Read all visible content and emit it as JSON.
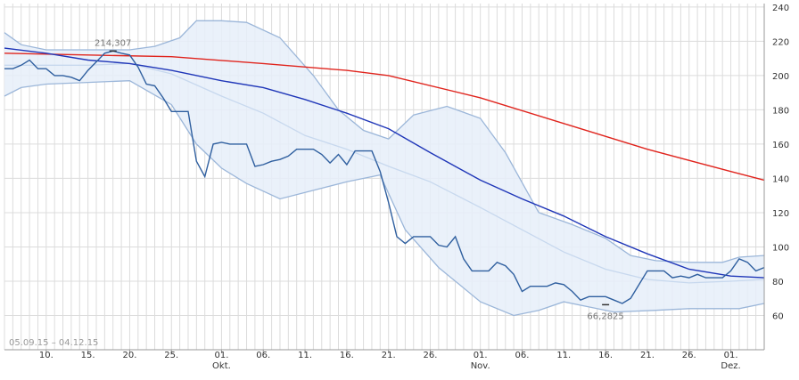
{
  "chart_data": {
    "type": "line",
    "title": "",
    "xlabel": "",
    "ylabel": "",
    "date_range": "05.09.15 – 04.12.15",
    "ylim": [
      40,
      242
    ],
    "yticks": [
      60,
      80,
      100,
      120,
      140,
      160,
      180,
      200,
      220,
      240
    ],
    "xticks": [
      {
        "date": "2015-09-10",
        "label": "10."
      },
      {
        "date": "2015-09-15",
        "label": "15."
      },
      {
        "date": "2015-09-20",
        "label": "20."
      },
      {
        "date": "2015-09-25",
        "label": "25."
      },
      {
        "date": "2015-10-01",
        "label": "01.",
        "month": "Okt."
      },
      {
        "date": "2015-10-06",
        "label": "06."
      },
      {
        "date": "2015-10-11",
        "label": "11."
      },
      {
        "date": "2015-10-16",
        "label": "16."
      },
      {
        "date": "2015-10-21",
        "label": "21."
      },
      {
        "date": "2015-10-26",
        "label": "26."
      },
      {
        "date": "2015-11-01",
        "label": "01.",
        "month": "Nov."
      },
      {
        "date": "2015-11-06",
        "label": "06."
      },
      {
        "date": "2015-11-11",
        "label": "11."
      },
      {
        "date": "2015-11-16",
        "label": "16."
      },
      {
        "date": "2015-11-21",
        "label": "21."
      },
      {
        "date": "2015-11-26",
        "label": "26."
      },
      {
        "date": "2015-12-01",
        "label": "01.",
        "month": "Dez."
      }
    ],
    "grid": true,
    "annotations": [
      {
        "label": "214,307",
        "date": "2015-09-18",
        "value": 214.307
      },
      {
        "label": "66,2825",
        "date": "2015-11-16",
        "value": 66.2825
      }
    ],
    "colors": {
      "price": "#2f5f9f",
      "sma_short": "#1f36b8",
      "sma_long": "#e0241d",
      "band_edge": "#9bb6d9",
      "band_mid": "#c7d8ee",
      "band_fill": "#e6eef9",
      "grid": "#dcdcdc"
    },
    "series": [
      {
        "key": "price",
        "points": [
          [
            "2015-09-05",
            204
          ],
          [
            "2015-09-06",
            204
          ],
          [
            "2015-09-07",
            206
          ],
          [
            "2015-09-08",
            209
          ],
          [
            "2015-09-09",
            204
          ],
          [
            "2015-09-10",
            204
          ],
          [
            "2015-09-11",
            200
          ],
          [
            "2015-09-12",
            200
          ],
          [
            "2015-09-13",
            199
          ],
          [
            "2015-09-14",
            197
          ],
          [
            "2015-09-15",
            203
          ],
          [
            "2015-09-16",
            208
          ],
          [
            "2015-09-17",
            213
          ],
          [
            "2015-09-18",
            214.307
          ],
          [
            "2015-09-19",
            213
          ],
          [
            "2015-09-20",
            212
          ],
          [
            "2015-09-21",
            205
          ],
          [
            "2015-09-22",
            195
          ],
          [
            "2015-09-23",
            194
          ],
          [
            "2015-09-24",
            187
          ],
          [
            "2015-09-25",
            179
          ],
          [
            "2015-09-26",
            179
          ],
          [
            "2015-09-27",
            179
          ],
          [
            "2015-09-28",
            150
          ],
          [
            "2015-09-29",
            141
          ],
          [
            "2015-09-30",
            160
          ],
          [
            "2015-10-01",
            161
          ],
          [
            "2015-10-02",
            160
          ],
          [
            "2015-10-03",
            160
          ],
          [
            "2015-10-04",
            160
          ],
          [
            "2015-10-05",
            147
          ],
          [
            "2015-10-06",
            148
          ],
          [
            "2015-10-07",
            150
          ],
          [
            "2015-10-08",
            151
          ],
          [
            "2015-10-09",
            153
          ],
          [
            "2015-10-10",
            157
          ],
          [
            "2015-10-11",
            157
          ],
          [
            "2015-10-12",
            157
          ],
          [
            "2015-10-13",
            154
          ],
          [
            "2015-10-14",
            149
          ],
          [
            "2015-10-15",
            154
          ],
          [
            "2015-10-16",
            148
          ],
          [
            "2015-10-17",
            156
          ],
          [
            "2015-10-18",
            156
          ],
          [
            "2015-10-19",
            156
          ],
          [
            "2015-10-20",
            144
          ],
          [
            "2015-10-21",
            126
          ],
          [
            "2015-10-22",
            106
          ],
          [
            "2015-10-23",
            102
          ],
          [
            "2015-10-24",
            106
          ],
          [
            "2015-10-25",
            106
          ],
          [
            "2015-10-26",
            106
          ],
          [
            "2015-10-27",
            101
          ],
          [
            "2015-10-28",
            100
          ],
          [
            "2015-10-29",
            106
          ],
          [
            "2015-10-30",
            93
          ],
          [
            "2015-10-31",
            86
          ],
          [
            "2015-11-01",
            86
          ],
          [
            "2015-11-02",
            86
          ],
          [
            "2015-11-03",
            91
          ],
          [
            "2015-11-04",
            89
          ],
          [
            "2015-11-05",
            84
          ],
          [
            "2015-11-06",
            74
          ],
          [
            "2015-11-07",
            77
          ],
          [
            "2015-11-08",
            77
          ],
          [
            "2015-11-09",
            77
          ],
          [
            "2015-11-10",
            79
          ],
          [
            "2015-11-11",
            78
          ],
          [
            "2015-11-12",
            74
          ],
          [
            "2015-11-13",
            69
          ],
          [
            "2015-11-14",
            71
          ],
          [
            "2015-11-15",
            71
          ],
          [
            "2015-11-16",
            71
          ],
          [
            "2015-11-17",
            69
          ],
          [
            "2015-11-18",
            67
          ],
          [
            "2015-11-19",
            70
          ],
          [
            "2015-11-20",
            78
          ],
          [
            "2015-11-21",
            86
          ],
          [
            "2015-11-22",
            86
          ],
          [
            "2015-11-23",
            86
          ],
          [
            "2015-11-24",
            82
          ],
          [
            "2015-11-25",
            83
          ],
          [
            "2015-11-26",
            82
          ],
          [
            "2015-11-27",
            84
          ],
          [
            "2015-11-28",
            82
          ],
          [
            "2015-11-29",
            82
          ],
          [
            "2015-11-30",
            82
          ],
          [
            "2015-12-01",
            86
          ],
          [
            "2015-12-02",
            93
          ],
          [
            "2015-12-03",
            91
          ],
          [
            "2015-12-04",
            86
          ],
          [
            "2015-12-05",
            88
          ]
        ]
      },
      {
        "key": "sma_short",
        "points": [
          [
            "2015-09-05",
            216
          ],
          [
            "2015-09-10",
            213
          ],
          [
            "2015-09-15",
            209
          ],
          [
            "2015-09-20",
            207
          ],
          [
            "2015-09-25",
            203
          ],
          [
            "2015-10-01",
            197
          ],
          [
            "2015-10-06",
            193
          ],
          [
            "2015-10-11",
            186
          ],
          [
            "2015-10-16",
            178
          ],
          [
            "2015-10-21",
            169
          ],
          [
            "2015-10-26",
            155
          ],
          [
            "2015-11-01",
            139
          ],
          [
            "2015-11-06",
            128
          ],
          [
            "2015-11-11",
            118
          ],
          [
            "2015-11-16",
            106
          ],
          [
            "2015-11-21",
            96
          ],
          [
            "2015-11-26",
            87
          ],
          [
            "2015-12-01",
            83
          ],
          [
            "2015-12-05",
            82
          ]
        ]
      },
      {
        "key": "sma_long",
        "points": [
          [
            "2015-09-05",
            213
          ],
          [
            "2015-09-15",
            212
          ],
          [
            "2015-09-25",
            211
          ],
          [
            "2015-10-06",
            207
          ],
          [
            "2015-10-16",
            203
          ],
          [
            "2015-10-21",
            200
          ],
          [
            "2015-11-01",
            187
          ],
          [
            "2015-11-11",
            172
          ],
          [
            "2015-11-21",
            157
          ],
          [
            "2015-12-01",
            144
          ],
          [
            "2015-12-05",
            139
          ]
        ]
      },
      {
        "key": "band_upper",
        "points": [
          [
            "2015-09-05",
            225
          ],
          [
            "2015-09-07",
            218
          ],
          [
            "2015-09-10",
            215
          ],
          [
            "2015-09-15",
            215
          ],
          [
            "2015-09-20",
            215
          ],
          [
            "2015-09-23",
            217
          ],
          [
            "2015-09-26",
            222
          ],
          [
            "2015-09-28",
            232
          ],
          [
            "2015-10-01",
            232
          ],
          [
            "2015-10-04",
            231
          ],
          [
            "2015-10-08",
            222
          ],
          [
            "2015-10-12",
            200
          ],
          [
            "2015-10-15",
            180
          ],
          [
            "2015-10-18",
            168
          ],
          [
            "2015-10-21",
            163
          ],
          [
            "2015-10-24",
            177
          ],
          [
            "2015-10-28",
            182
          ],
          [
            "2015-11-01",
            175
          ],
          [
            "2015-11-04",
            155
          ],
          [
            "2015-11-08",
            120
          ],
          [
            "2015-11-12",
            113
          ],
          [
            "2015-11-16",
            105
          ],
          [
            "2015-11-19",
            95
          ],
          [
            "2015-11-22",
            92
          ],
          [
            "2015-11-26",
            91
          ],
          [
            "2015-11-30",
            91
          ],
          [
            "2015-12-02",
            94
          ],
          [
            "2015-12-05",
            95
          ]
        ]
      },
      {
        "key": "band_middle",
        "points": [
          [
            "2015-09-05",
            206
          ],
          [
            "2015-09-10",
            206
          ],
          [
            "2015-09-15",
            206
          ],
          [
            "2015-09-20",
            207
          ],
          [
            "2015-09-25",
            201
          ],
          [
            "2015-10-01",
            188
          ],
          [
            "2015-10-06",
            178
          ],
          [
            "2015-10-11",
            165
          ],
          [
            "2015-10-16",
            157
          ],
          [
            "2015-10-21",
            147
          ],
          [
            "2015-10-26",
            138
          ],
          [
            "2015-11-01",
            123
          ],
          [
            "2015-11-06",
            110
          ],
          [
            "2015-11-11",
            97
          ],
          [
            "2015-11-16",
            87
          ],
          [
            "2015-11-21",
            81
          ],
          [
            "2015-11-26",
            79
          ],
          [
            "2015-12-01",
            80
          ],
          [
            "2015-12-05",
            81
          ]
        ]
      },
      {
        "key": "band_lower",
        "points": [
          [
            "2015-09-05",
            188
          ],
          [
            "2015-09-07",
            193
          ],
          [
            "2015-09-10",
            195
          ],
          [
            "2015-09-15",
            196
          ],
          [
            "2015-09-20",
            197
          ],
          [
            "2015-09-25",
            183
          ],
          [
            "2015-09-28",
            160
          ],
          [
            "2015-10-01",
            146
          ],
          [
            "2015-10-04",
            137
          ],
          [
            "2015-10-08",
            128
          ],
          [
            "2015-10-12",
            133
          ],
          [
            "2015-10-16",
            138
          ],
          [
            "2015-10-20",
            142
          ],
          [
            "2015-10-23",
            110
          ],
          [
            "2015-10-27",
            88
          ],
          [
            "2015-11-01",
            68
          ],
          [
            "2015-11-05",
            60
          ],
          [
            "2015-11-08",
            63
          ],
          [
            "2015-11-11",
            68
          ],
          [
            "2015-11-14",
            65
          ],
          [
            "2015-11-17",
            62
          ],
          [
            "2015-11-22",
            63
          ],
          [
            "2015-11-26",
            64
          ],
          [
            "2015-11-30",
            64
          ],
          [
            "2015-12-02",
            64
          ],
          [
            "2015-12-05",
            67
          ]
        ]
      }
    ]
  }
}
